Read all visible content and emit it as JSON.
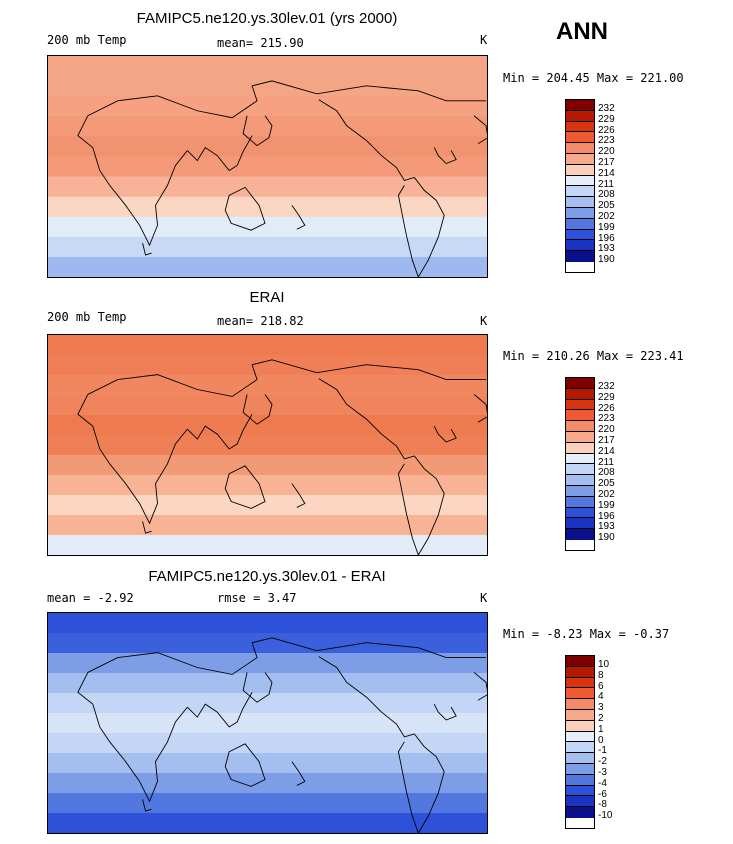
{
  "season": "ANN",
  "panels": [
    {
      "id": "model",
      "title": "FAMIPC5.ne120.ys.30lev.01 (yrs 2000)",
      "left_label": "200 mb Temp",
      "mid_label": "mean= 215.90",
      "units": "K",
      "minmax": "Min = 204.45 Max = 221.00",
      "levels": [
        "232",
        "229",
        "226",
        "223",
        "220",
        "217",
        "214",
        "211",
        "208",
        "205",
        "202",
        "199",
        "196",
        "193",
        "190"
      ],
      "colors": [
        "#7f0000",
        "#b51a00",
        "#d8350f",
        "#ef5a33",
        "#f48a66",
        "#f7a98b",
        "#fbd0bb",
        "#e6eef9",
        "#c3d6f5",
        "#a4bef0",
        "#7d9ee7",
        "#5278e0",
        "#2d52d9",
        "#1a33c1",
        "#0a0f8c"
      ],
      "band_colors": [
        "#f4a585",
        "#f4a585",
        "#f6a181",
        "#f49a78",
        "#f19270",
        "#f49a78",
        "#f7b297",
        "#fbd6c3",
        "#e2ebf8",
        "#c7d9f5",
        "#9db9f0"
      ]
    },
    {
      "id": "obs",
      "title": "ERAI",
      "left_label": "200 mb Temp",
      "mid_label": "mean= 218.82",
      "units": "K",
      "minmax": "Min = 210.26 Max = 223.41",
      "levels": [
        "232",
        "229",
        "226",
        "223",
        "220",
        "217",
        "214",
        "211",
        "208",
        "205",
        "202",
        "199",
        "196",
        "193",
        "190"
      ],
      "colors": [
        "#7f0000",
        "#b51a00",
        "#d8350f",
        "#ef5a33",
        "#f48a66",
        "#f7a98b",
        "#fbd0bb",
        "#e6eef9",
        "#c3d6f5",
        "#a4bef0",
        "#7d9ee7",
        "#5278e0",
        "#2d52d9",
        "#1a33c1",
        "#0a0f8c"
      ],
      "band_colors": [
        "#ef7a50",
        "#f07f57",
        "#f1875f",
        "#f0845c",
        "#ee7a50",
        "#ef7f55",
        "#f29a76",
        "#f7b394",
        "#fbd6c3",
        "#f7b394",
        "#e2ebf8"
      ]
    },
    {
      "id": "diff",
      "title": "FAMIPC5.ne120.ys.30lev.01 - ERAI",
      "left_label": "mean =  -2.92",
      "mid_label": "rmse =   3.47",
      "units": "K",
      "minmax": "Min =  -8.23 Max =  -0.37",
      "levels": [
        "10",
        "8",
        "6",
        "4",
        "3",
        "2",
        "1",
        "0",
        "-1",
        "-2",
        "-3",
        "-4",
        "-6",
        "-8",
        "-10"
      ],
      "colors": [
        "#7f0000",
        "#b51a00",
        "#d8350f",
        "#ef5a33",
        "#f48a66",
        "#f7a98b",
        "#fbd0bb",
        "#e6eef9",
        "#c3d6f5",
        "#a4bef0",
        "#7d9ee7",
        "#5278e0",
        "#2d52d9",
        "#1a33c1",
        "#0a0f8c"
      ],
      "band_colors": [
        "#2d52d9",
        "#3a60dc",
        "#7d9ee7",
        "#a4bef0",
        "#c3d6f5",
        "#d7e4f8",
        "#c3d6f5",
        "#a4bef0",
        "#7d9ee7",
        "#5278e0",
        "#2d52d9"
      ]
    }
  ]
}
